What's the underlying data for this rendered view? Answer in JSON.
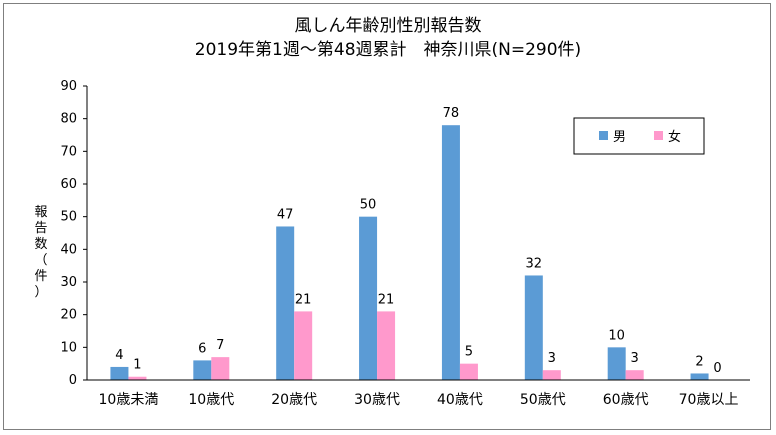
{
  "chart_data": {
    "type": "bar",
    "title": "風しん年齢別性別報告数",
    "subtitle": "2019年第1週～第48週累計　神奈川県(N=290件)",
    "ylabel": "報告数（件）",
    "ylabel_chars": [
      "報",
      "告",
      "数",
      "（",
      "件",
      "）"
    ],
    "ylim": [
      0,
      90
    ],
    "yticks": [
      "0",
      "10",
      "20",
      "30",
      "40",
      "50",
      "60",
      "70",
      "80",
      "90"
    ],
    "categories": [
      "10歳未満",
      "10歳代",
      "20歳代",
      "30歳代",
      "40歳代",
      "50歳代",
      "60歳代",
      "70歳以上"
    ],
    "series": [
      {
        "name": "男",
        "color": "#5b9bd5",
        "values": [
          4,
          6,
          47,
          50,
          78,
          32,
          10,
          2
        ]
      },
      {
        "name": "女",
        "color": "#ff99cc",
        "values": [
          1,
          7,
          21,
          21,
          5,
          3,
          3,
          0
        ]
      }
    ],
    "legend_position": "top-right",
    "grid": false
  }
}
